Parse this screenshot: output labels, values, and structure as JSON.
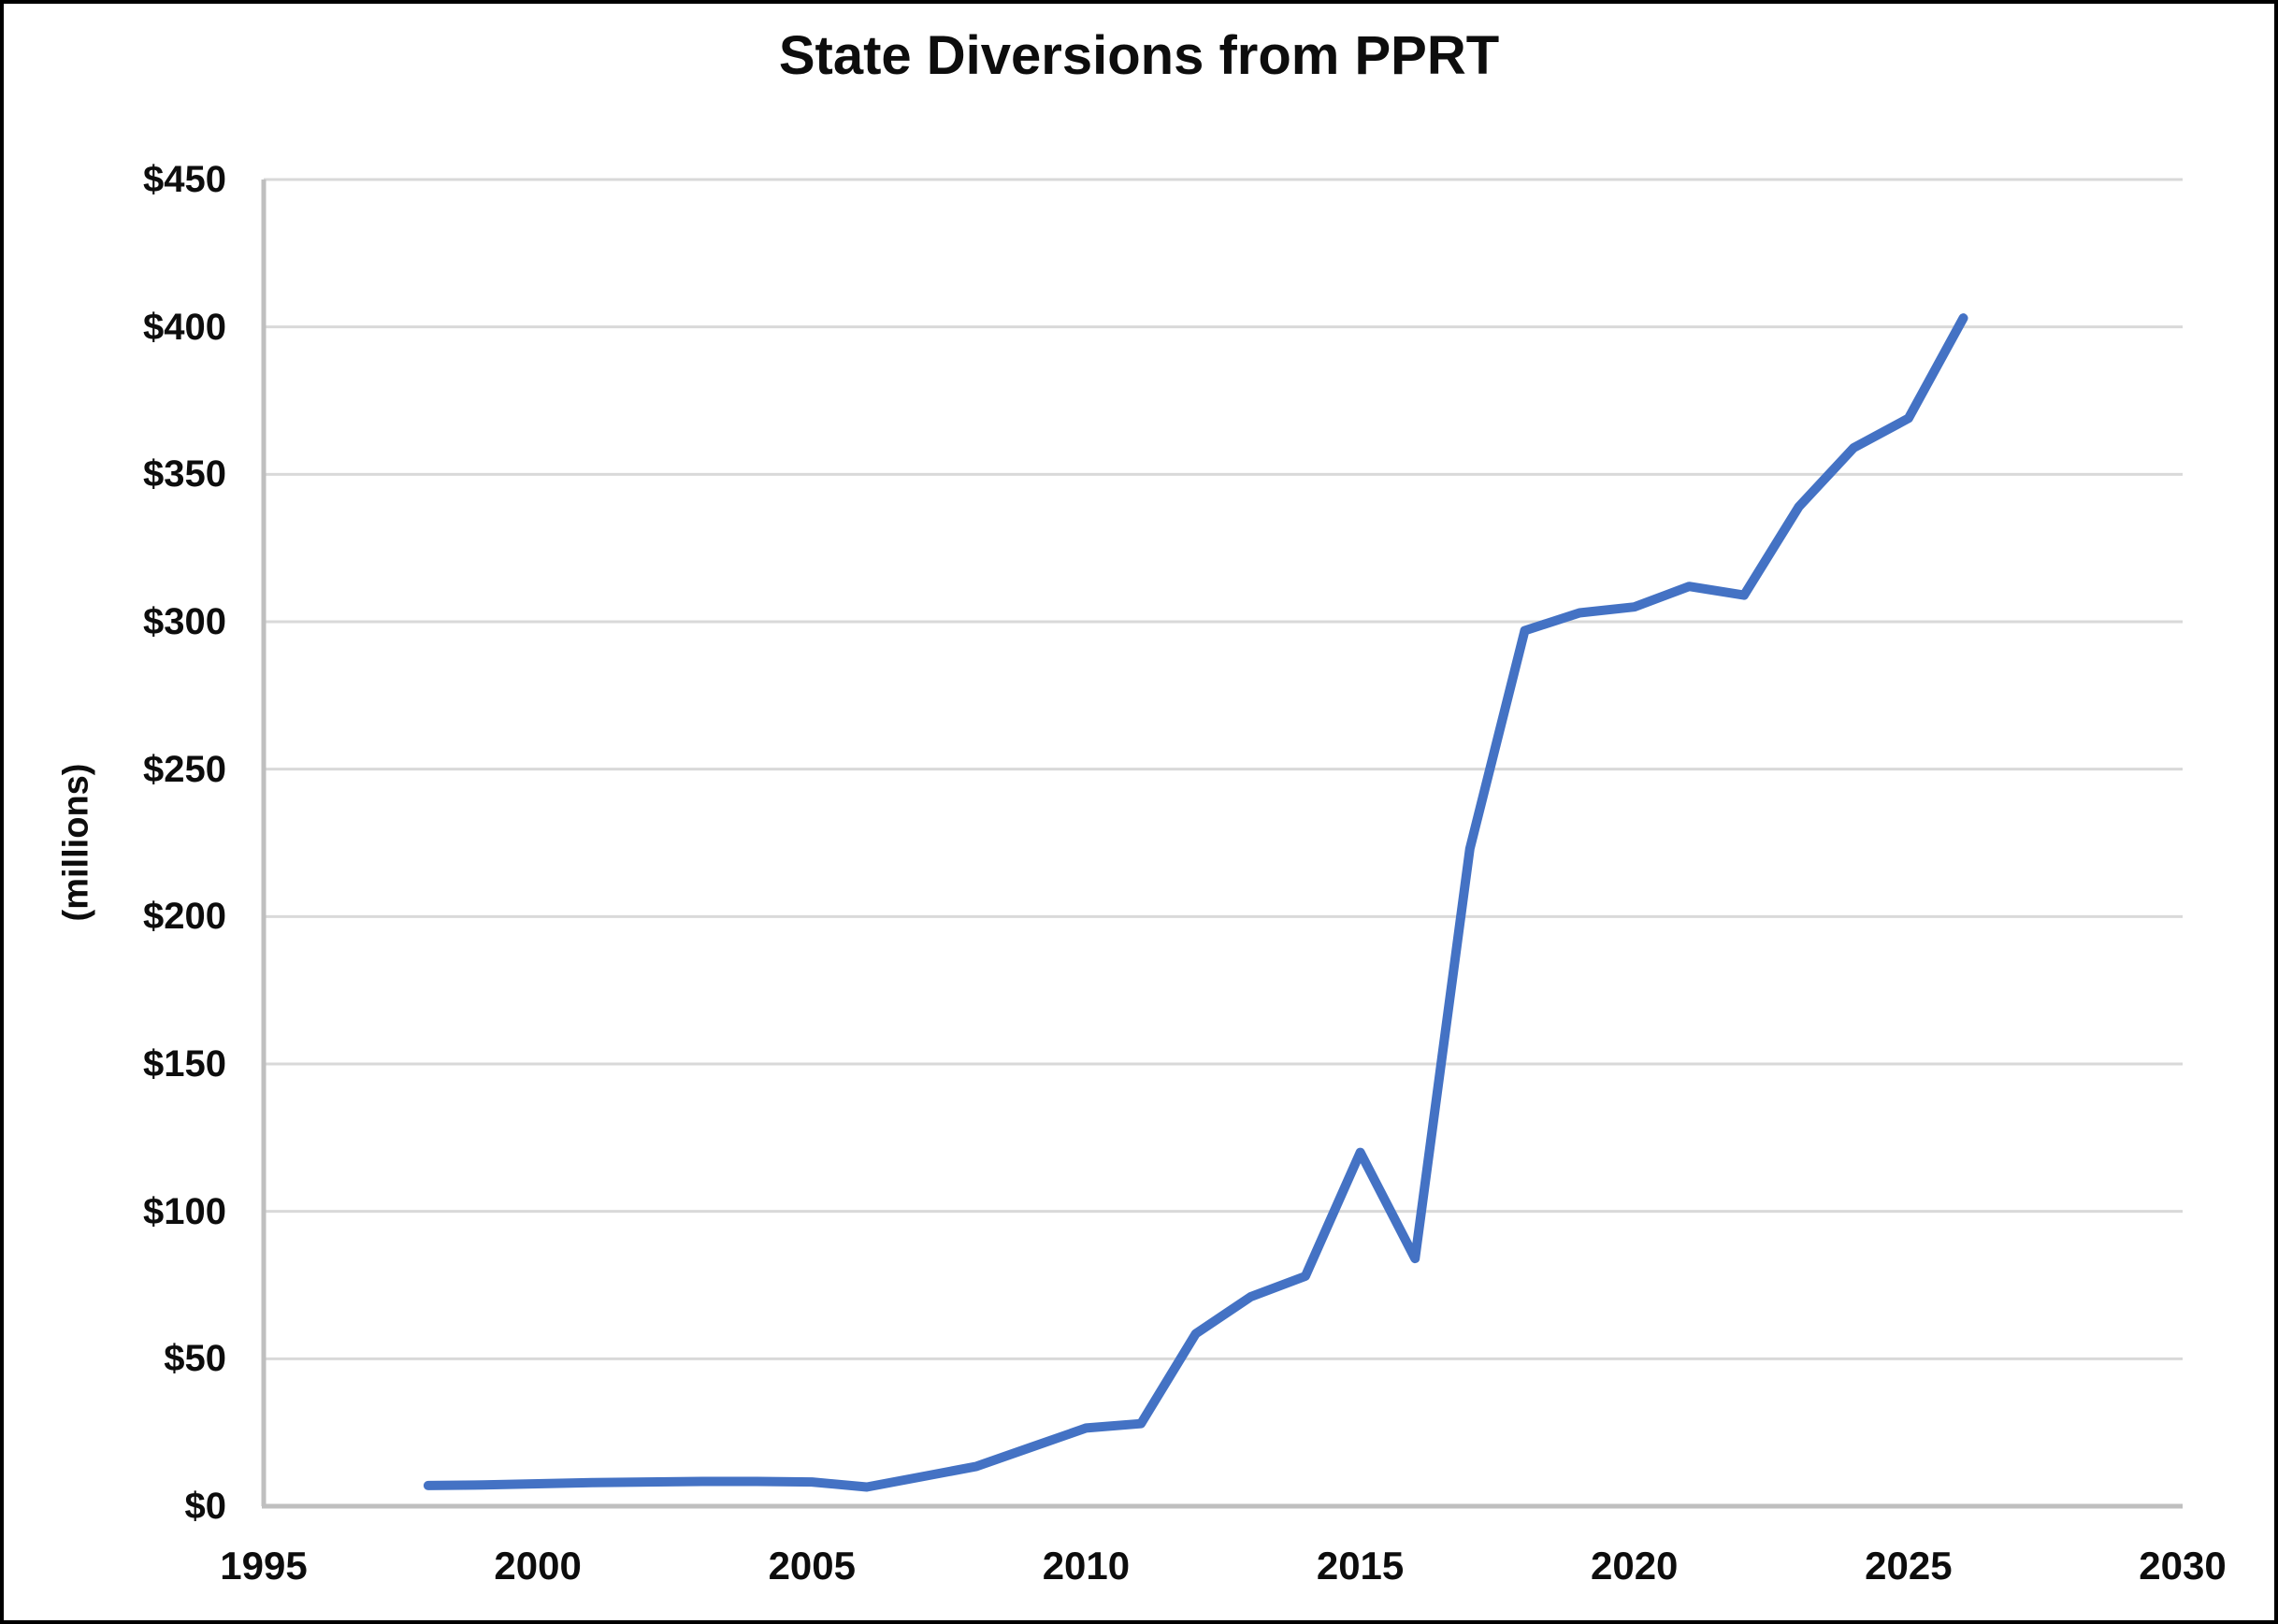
{
  "chart": {
    "title": "State Diversions from PPRT",
    "y_axis_title": "(millions)"
  },
  "chart_data": {
    "type": "line",
    "title": "State Diversions from PPRT",
    "xlabel": "",
    "ylabel": "(millions)",
    "x": [
      1998,
      1999,
      2000,
      2001,
      2002,
      2003,
      2004,
      2005,
      2006,
      2007,
      2008,
      2009,
      2010,
      2011,
      2012,
      2013,
      2014,
      2015,
      2016,
      2017,
      2018,
      2019,
      2020,
      2021,
      2022,
      2023,
      2024,
      2025,
      2026
    ],
    "values": [
      7,
      7.2,
      7.6,
      8,
      8.2,
      8.4,
      8.4,
      8.2,
      6.5,
      10,
      13.5,
      20,
      26.5,
      28,
      58.5,
      71,
      78,
      120,
      84,
      223,
      297,
      303,
      305,
      312,
      309,
      339,
      359,
      369,
      403
    ],
    "xlim": [
      1995,
      2030
    ],
    "ylim": [
      0,
      450
    ],
    "x_tick_values": [
      1995,
      2000,
      2005,
      2010,
      2015,
      2020,
      2025,
      2030
    ],
    "x_tick_labels": [
      "1995",
      "2000",
      "2005",
      "2010",
      "2015",
      "2020",
      "2025",
      "2030"
    ],
    "y_tick_values": [
      0,
      50,
      100,
      150,
      200,
      250,
      300,
      350,
      400,
      450
    ],
    "y_tick_labels": [
      "$0",
      "$50",
      "$100",
      "$150",
      "$200",
      "$250",
      "$300",
      "$350",
      "$400",
      "$450"
    ],
    "grid": "horizontal",
    "legend": "none",
    "colors": {
      "line": "#4472C4",
      "gridline": "#D9D9D9",
      "axis_line": "#BFBFBF",
      "text": "#0d0d0d",
      "background": "#FFFFFF",
      "frame_border": "#000000"
    }
  }
}
